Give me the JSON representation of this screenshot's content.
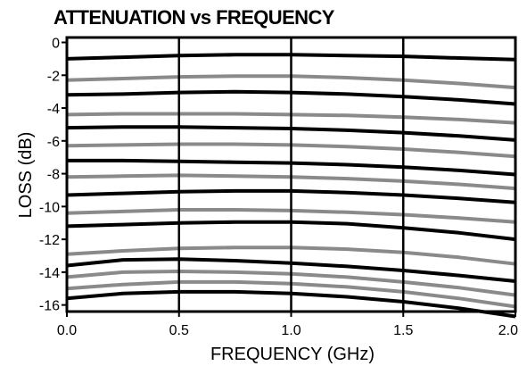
{
  "chart_data": {
    "type": "line",
    "title": "ATTENUATION vs FREQUENCY",
    "xlabel": "FREQUENCY (GHz)",
    "ylabel": "LOSS (dB)",
    "xlim": [
      0,
      2
    ],
    "ylim": [
      -16.4,
      0.3
    ],
    "x_ticks": [
      "0.0",
      "0.5",
      "1.0",
      "1.5",
      "2.0"
    ],
    "y_ticks": [
      "0",
      "-2",
      "-4",
      "-6",
      "-8",
      "-10",
      "-12",
      "-14",
      "-16"
    ],
    "grid": "vertical",
    "legend": "none",
    "colors": {
      "black": "#000000",
      "gray": "#8a8a8a",
      "background": "#ffffff"
    },
    "x": [
      0.0,
      0.25,
      0.5,
      0.75,
      1.0,
      1.25,
      1.5,
      1.75,
      2.0
    ],
    "series": [
      {
        "color": "black",
        "values": [
          -1.0,
          -0.9,
          -0.8,
          -0.75,
          -0.75,
          -0.8,
          -0.85,
          -0.95,
          -1.05
        ]
      },
      {
        "color": "gray",
        "values": [
          -2.3,
          -2.2,
          -2.1,
          -2.05,
          -2.05,
          -2.15,
          -2.3,
          -2.5,
          -2.75
        ]
      },
      {
        "color": "black",
        "values": [
          -3.2,
          -3.15,
          -3.05,
          -3.0,
          -3.05,
          -3.15,
          -3.3,
          -3.5,
          -3.75
        ]
      },
      {
        "color": "gray",
        "values": [
          -4.4,
          -4.35,
          -4.35,
          -4.35,
          -4.4,
          -4.45,
          -4.55,
          -4.7,
          -4.9
        ]
      },
      {
        "color": "black",
        "values": [
          -5.2,
          -5.15,
          -5.15,
          -5.2,
          -5.25,
          -5.35,
          -5.5,
          -5.7,
          -5.95
        ]
      },
      {
        "color": "gray",
        "values": [
          -6.3,
          -6.25,
          -6.2,
          -6.2,
          -6.25,
          -6.35,
          -6.5,
          -6.7,
          -6.95
        ]
      },
      {
        "color": "black",
        "values": [
          -7.2,
          -7.2,
          -7.25,
          -7.3,
          -7.35,
          -7.45,
          -7.6,
          -7.8,
          -8.05
        ]
      },
      {
        "color": "gray",
        "values": [
          -8.2,
          -8.15,
          -8.1,
          -8.15,
          -8.2,
          -8.3,
          -8.45,
          -8.65,
          -8.9
        ]
      },
      {
        "color": "black",
        "values": [
          -9.3,
          -9.2,
          -9.1,
          -9.05,
          -9.05,
          -9.15,
          -9.3,
          -9.5,
          -9.75
        ]
      },
      {
        "color": "gray",
        "values": [
          -10.4,
          -10.3,
          -10.2,
          -10.2,
          -10.25,
          -10.35,
          -10.5,
          -10.7,
          -10.95
        ]
      },
      {
        "color": "black",
        "values": [
          -11.2,
          -11.1,
          -11.0,
          -10.95,
          -10.95,
          -11.05,
          -11.3,
          -11.6,
          -12.0
        ]
      },
      {
        "color": "gray",
        "values": [
          -12.9,
          -12.7,
          -12.55,
          -12.5,
          -12.5,
          -12.6,
          -12.8,
          -13.1,
          -13.5
        ]
      },
      {
        "color": "black",
        "values": [
          -13.6,
          -13.25,
          -13.2,
          -13.3,
          -13.45,
          -13.65,
          -13.9,
          -14.2,
          -14.55
        ]
      },
      {
        "color": "gray",
        "values": [
          -14.3,
          -14.0,
          -13.95,
          -14.0,
          -14.1,
          -14.3,
          -14.6,
          -14.95,
          -15.4
        ]
      },
      {
        "color": "gray",
        "values": [
          -15.0,
          -14.75,
          -14.6,
          -14.6,
          -14.7,
          -14.9,
          -15.2,
          -15.6,
          -16.1
        ]
      },
      {
        "color": "black",
        "values": [
          -15.6,
          -15.3,
          -15.2,
          -15.2,
          -15.3,
          -15.5,
          -15.8,
          -16.2,
          -16.7
        ]
      }
    ]
  }
}
